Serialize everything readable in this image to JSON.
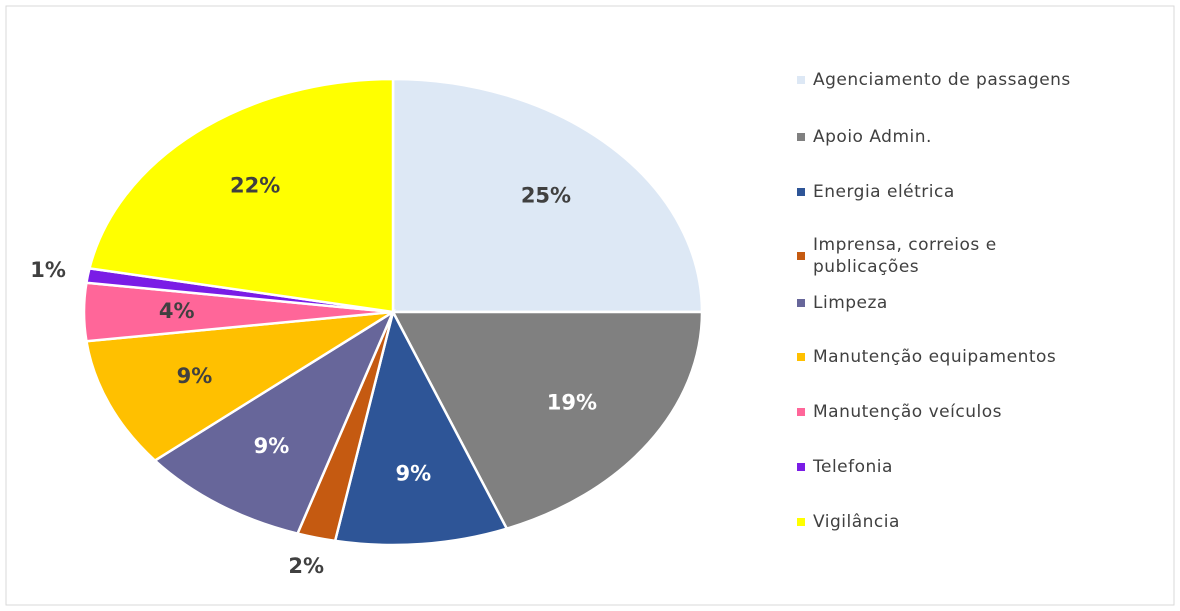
{
  "chart_data": {
    "type": "pie",
    "categories": [
      "Agenciamento de passagens",
      "Apoio Admin.",
      "Energia elétrica",
      "Imprensa, correios e publicações",
      "Limpeza",
      "Manutenção equipamentos",
      "Manutenção veículos",
      "Telefonia",
      "Vigilância"
    ],
    "values": [
      25,
      19,
      9,
      2,
      9,
      9,
      4,
      1,
      22
    ],
    "value_labels": [
      "25%",
      "19%",
      "9%",
      "2%",
      "9%",
      "9%",
      "4%",
      "1%",
      "22%"
    ],
    "colors": [
      "#dde8f5",
      "#808080",
      "#2e5597",
      "#c55a11",
      "#67669a",
      "#ffc000",
      "#ff6699",
      "#7a1ce6",
      "#ffff00"
    ],
    "legend": "right"
  }
}
